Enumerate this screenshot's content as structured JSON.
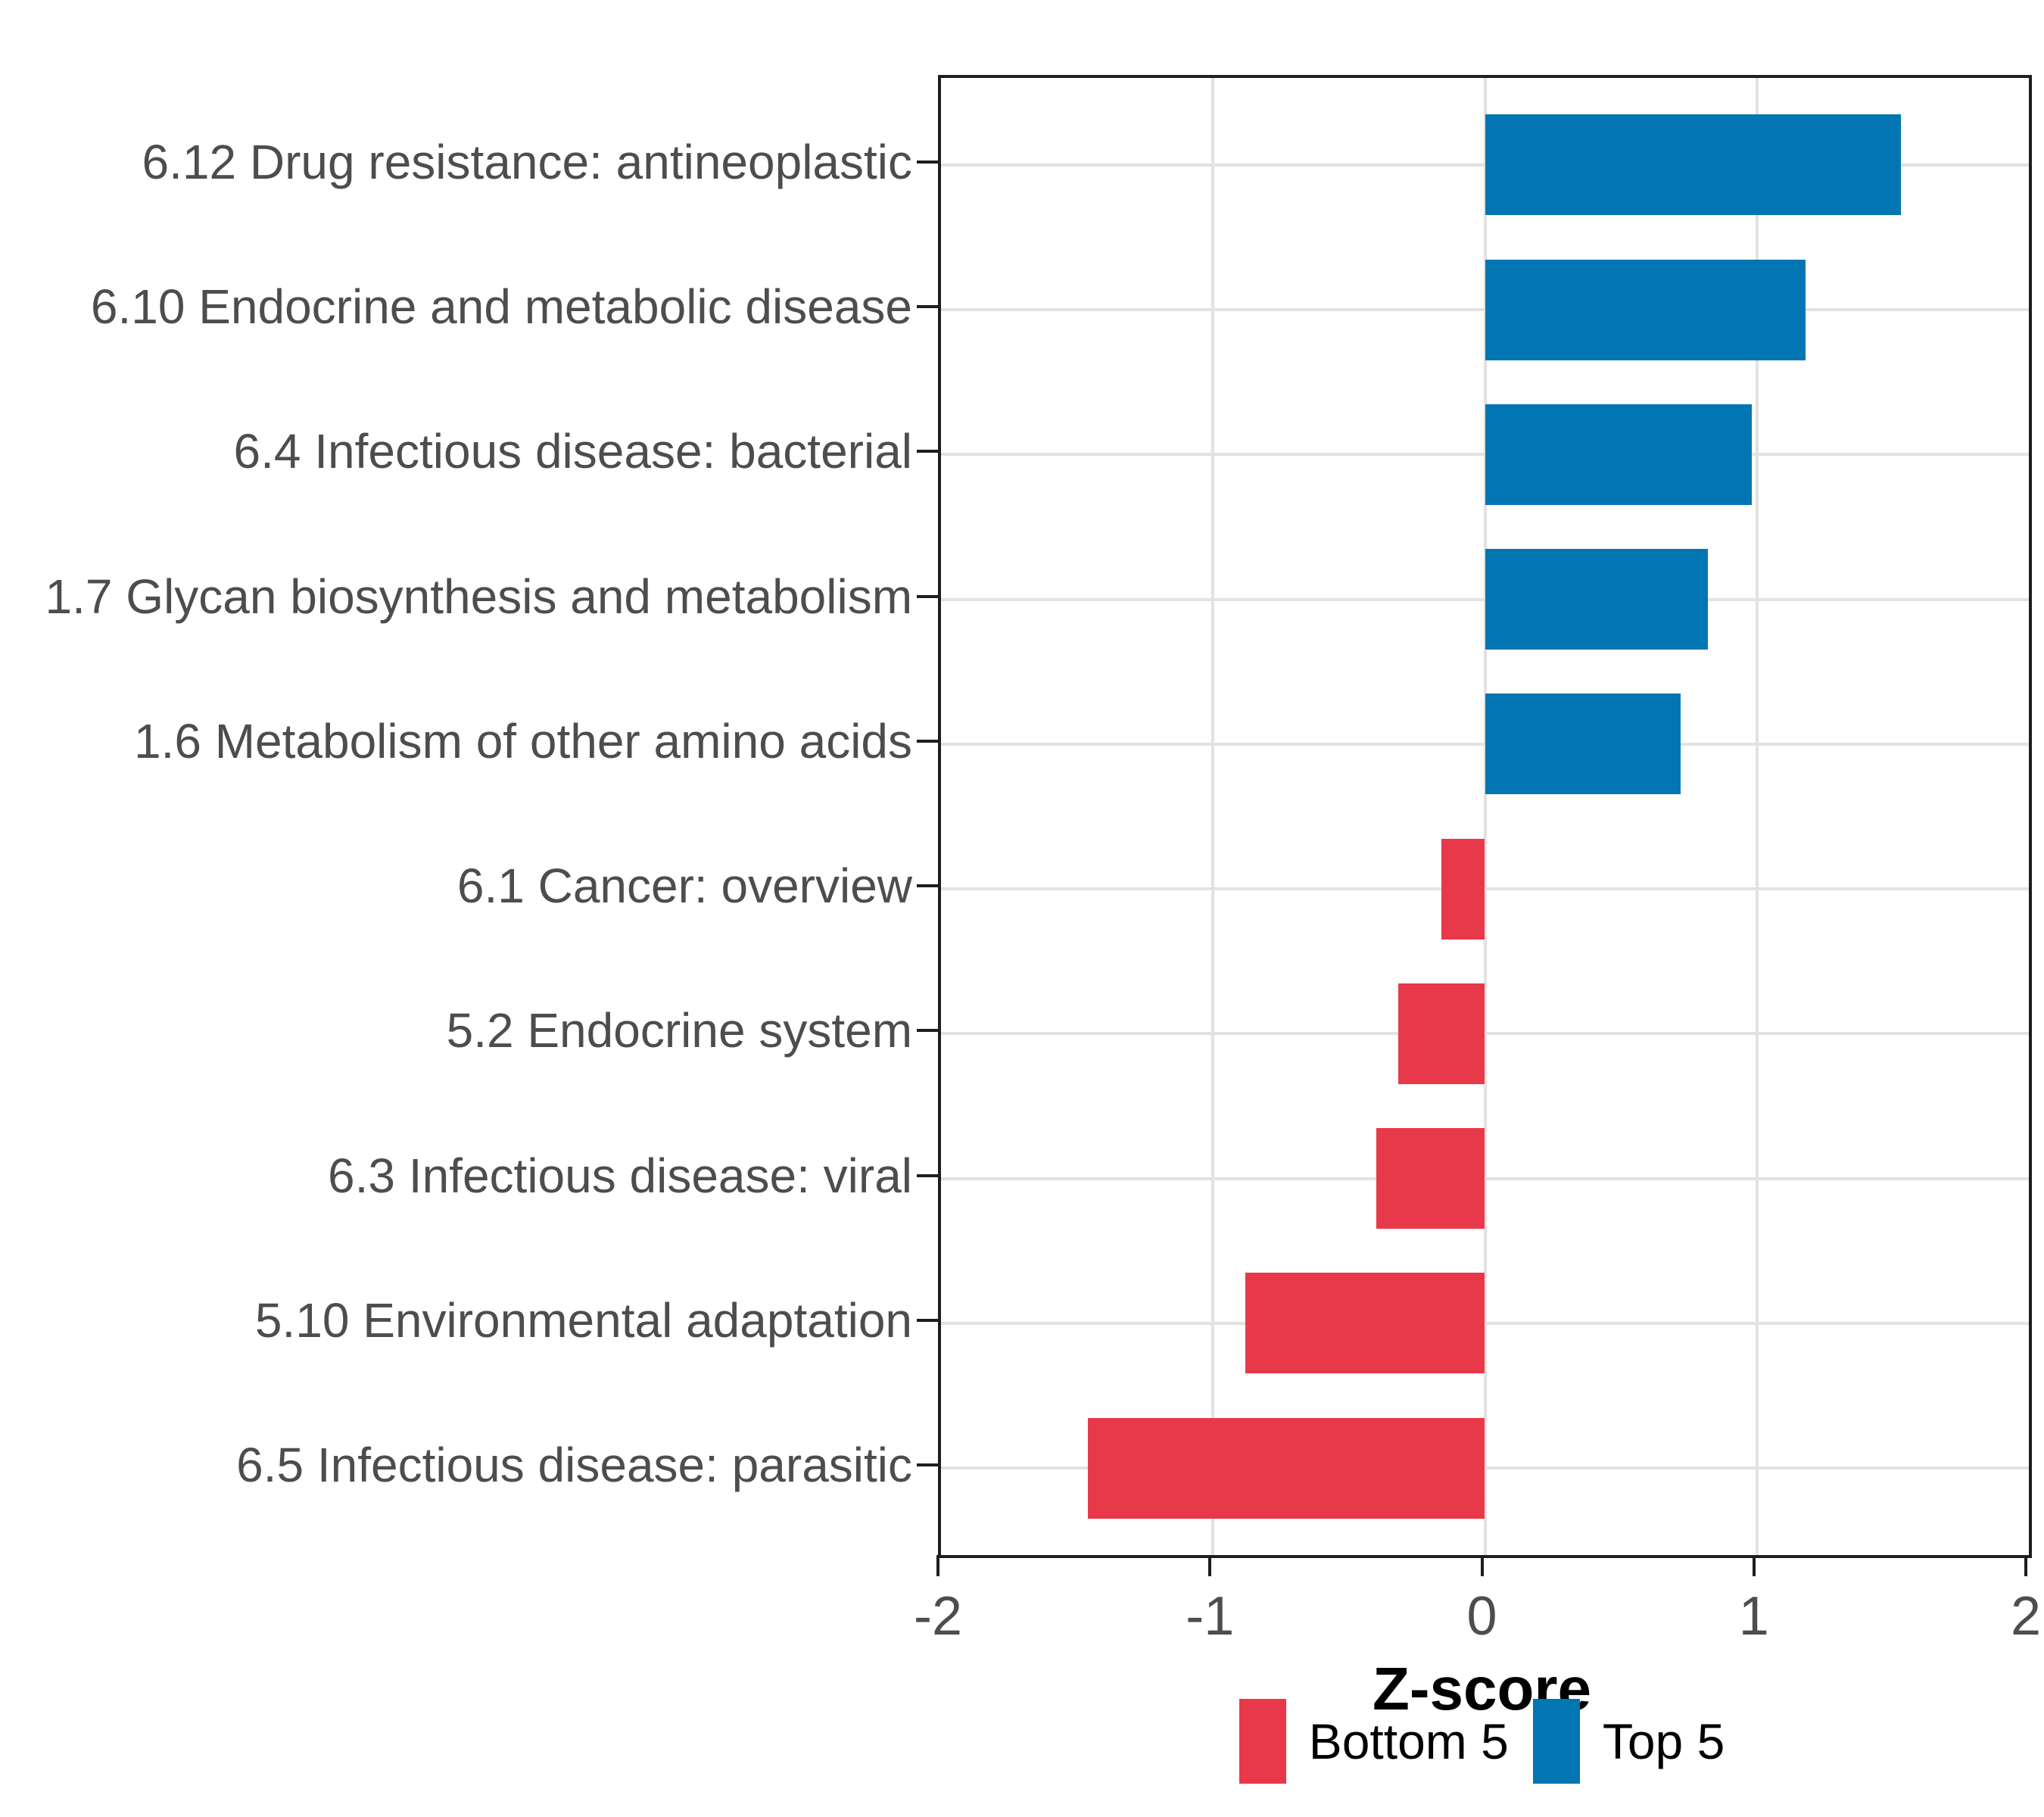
{
  "style": {
    "panel_border_color": "#1e1e1e",
    "gridline_color": "#e2e2e2",
    "axis_text_color": "#4d4d4d",
    "axis_title_color": "#000000",
    "background_color": "#ffffff",
    "bar_blue": "#0275b3",
    "bar_red": "#e8394a"
  },
  "chart_data": {
    "type": "bar",
    "orientation": "horizontal",
    "title": "",
    "xlabel": "Z-score",
    "ylabel": "",
    "xlim": [
      -2,
      2
    ],
    "x_ticks": [
      -2,
      -1,
      0,
      1,
      2
    ],
    "x_gridlines": [
      -1,
      0,
      1
    ],
    "grid": "on",
    "categories": [
      "6.12 Drug resistance: antineoplastic",
      "6.10 Endocrine and metabolic disease",
      "6.4 Infectious disease: bacterial",
      "1.7 Glycan biosynthesis and metabolism",
      "1.6 Metabolism of other amino acids",
      "6.1 Cancer: overview",
      "5.2 Endocrine system",
      "6.3 Infectious disease: viral",
      "5.10 Environmental adaptation",
      "6.5 Infectious disease: parasitic"
    ],
    "values": [
      1.53,
      1.18,
      0.98,
      0.82,
      0.72,
      -0.16,
      -0.32,
      -0.4,
      -0.88,
      -1.46
    ],
    "groups": [
      "Top 5",
      "Top 5",
      "Top 5",
      "Top 5",
      "Top 5",
      "Bottom 5",
      "Bottom 5",
      "Bottom 5",
      "Bottom 5",
      "Bottom 5"
    ],
    "colors": {
      "Top 5": "#0275b3",
      "Bottom 5": "#e8394a"
    },
    "legend": {
      "position": "bottom",
      "entries": [
        {
          "label": "Bottom 5",
          "color": "#e8394a"
        },
        {
          "label": "Top 5",
          "color": "#0275b3"
        }
      ]
    }
  }
}
